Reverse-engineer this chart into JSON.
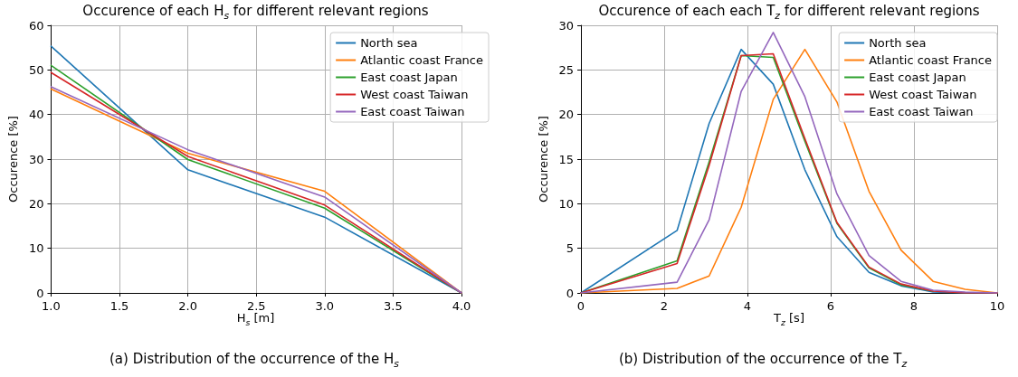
{
  "chart_data": [
    {
      "type": "line",
      "title": "Occurence of each H$_{s}$ for different relevant regions",
      "xlabel": "H$_{s}$ [m]",
      "ylabel": "Occurence [%]",
      "x": [
        1,
        2,
        3,
        4
      ],
      "series": [
        {
          "name": "North sea",
          "color": "#1f77b4",
          "values": [
            55.3,
            27.6,
            17.0,
            0
          ]
        },
        {
          "name": "Atlantic coast France",
          "color": "#ff7f0e",
          "values": [
            45.7,
            31.3,
            22.8,
            0
          ]
        },
        {
          "name": "East coast Japan",
          "color": "#2ca02c",
          "values": [
            51.0,
            29.9,
            19.0,
            0
          ]
        },
        {
          "name": "West coast Taiwan",
          "color": "#d62728",
          "values": [
            49.4,
            30.6,
            19.7,
            0
          ]
        },
        {
          "name": "East coast Taiwan",
          "color": "#9467bd",
          "values": [
            46.2,
            32.1,
            21.5,
            0
          ]
        }
      ],
      "xlim": [
        1,
        4
      ],
      "xticks": [
        {
          "value": 1,
          "label": "1.0"
        },
        {
          "value": 1.5,
          "label": "1.5"
        },
        {
          "value": 2,
          "label": "2.0"
        },
        {
          "value": 2.5,
          "label": "2.5"
        },
        {
          "value": 3,
          "label": "3.0"
        },
        {
          "value": 3.5,
          "label": "3.5"
        },
        {
          "value": 4,
          "label": "4.0"
        }
      ],
      "ylim": [
        0,
        60
      ],
      "yticks": [
        0,
        10,
        20,
        30,
        40,
        50,
        60
      ],
      "grid": true,
      "legend": "top right",
      "marker": "none",
      "line_style": "solid",
      "annotations": [
        "(a) Distribution of the occurrence of the H$_{s}$"
      ]
    },
    {
      "type": "line",
      "title": "Occurence of each each T$_{z}$ for different relevant regions",
      "xlabel": "T$_{z}$ [s]",
      "ylabel": "Occurence [%]",
      "x": [
        0,
        2.31,
        3.08,
        3.85,
        4.62,
        5.38,
        6.15,
        6.92,
        7.69,
        8.46,
        9.23,
        10
      ],
      "series": [
        {
          "name": "North sea",
          "color": "#1f77b4",
          "values": [
            0,
            7.0,
            19.0,
            27.3,
            23.4,
            13.8,
            6.3,
            2.3,
            0.8,
            0.1,
            0,
            0
          ]
        },
        {
          "name": "Atlantic coast France",
          "color": "#ff7f0e",
          "values": [
            0,
            0.5,
            1.9,
            9.6,
            21.7,
            27.3,
            21.4,
            11.4,
            4.8,
            1.3,
            0.4,
            0
          ]
        },
        {
          "name": "East coast Japan",
          "color": "#2ca02c",
          "values": [
            0,
            3.6,
            14.7,
            26.6,
            26.4,
            17.0,
            7.8,
            2.8,
            0.9,
            0.2,
            null,
            null
          ]
        },
        {
          "name": "West coast Taiwan",
          "color": "#d62728",
          "values": [
            0,
            3.3,
            14.3,
            26.6,
            26.8,
            17.3,
            7.9,
            2.9,
            1.0,
            0.2,
            0,
            0
          ]
        },
        {
          "name": "East coast Taiwan",
          "color": "#9467bd",
          "values": [
            0,
            1.2,
            8.2,
            22.6,
            29.2,
            22.0,
            11.1,
            4.2,
            1.3,
            0.3,
            0.1,
            0
          ]
        }
      ],
      "xlim": [
        0,
        10
      ],
      "xticks": [
        0,
        2,
        4,
        6,
        8,
        10
      ],
      "ylim": [
        0,
        30
      ],
      "yticks": [
        0,
        5,
        10,
        15,
        20,
        25,
        30
      ],
      "grid": true,
      "legend": "top right",
      "marker": "none",
      "line_style": "solid",
      "annotations": [
        "(b) Distribution of the occurrence of the T$_{z}$"
      ]
    }
  ]
}
